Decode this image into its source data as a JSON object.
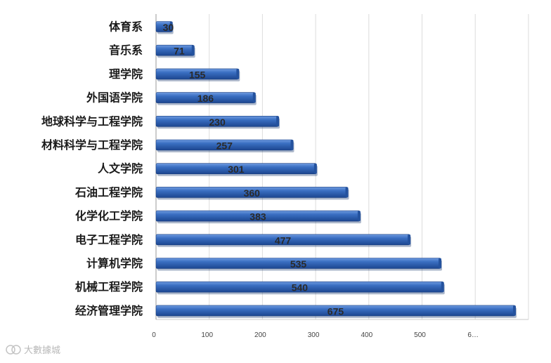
{
  "chart_data": {
    "type": "bar",
    "orientation": "horizontal",
    "categories": [
      "体育系",
      "音乐系",
      "理学院",
      "外国语学院",
      "地球科学与工程学院",
      "材料科学与工程学院",
      "人文学院",
      "石油工程学院",
      "化学化工学院",
      "电子工程学院",
      "计算机学院",
      "机械工程学院",
      "经济管理学院"
    ],
    "values": [
      30,
      71,
      155,
      186,
      230,
      257,
      301,
      360,
      383,
      477,
      535,
      540,
      675
    ],
    "data_labels": [
      "30",
      "71",
      "155",
      "186",
      "230",
      "257",
      "301",
      "360",
      "383",
      "477",
      "535",
      "540",
      "675"
    ],
    "x_ticks": [
      "0",
      "100",
      "200",
      "300",
      "400",
      "500",
      "6…"
    ],
    "xlim": [
      0,
      700
    ],
    "grid": true,
    "bar_color": "#2f64b4",
    "title": "",
    "xlabel": "",
    "ylabel": ""
  },
  "watermark": {
    "text": "大數據城"
  }
}
